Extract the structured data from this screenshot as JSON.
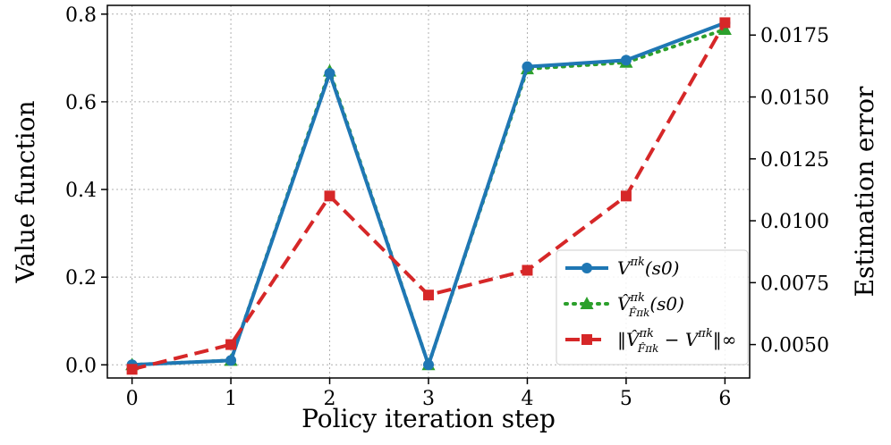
{
  "chart_data": {
    "type": "line",
    "x": [
      0,
      1,
      2,
      3,
      4,
      5,
      6
    ],
    "xlabel": "Policy iteration step",
    "ylabel_left": "Value function",
    "ylabel_right": "Estimation error",
    "ylim_left": [
      -0.03,
      0.82
    ],
    "ylim_right": [
      0.00365,
      0.0187
    ],
    "xlim": [
      -0.25,
      6.25
    ],
    "xticks": [
      "0",
      "1",
      "2",
      "3",
      "4",
      "5",
      "6"
    ],
    "yticks_left": [
      "0.0",
      "0.2",
      "0.4",
      "0.6",
      "0.8"
    ],
    "yticks_right": [
      "0.0050",
      "0.0075",
      "0.0100",
      "0.0125",
      "0.0150",
      "0.0175"
    ],
    "grid": true,
    "legend_position": "bottom-right",
    "series": [
      {
        "name": "V^{πk}(s0)",
        "axis": "left",
        "color": "#1f77b4",
        "marker": "circle",
        "line_style": "solid",
        "values": [
          0.0,
          0.01,
          0.665,
          0.0,
          0.68,
          0.695,
          0.78
        ]
      },
      {
        "name": "V̂^{πk}_{F̂^{πk}}(s0)",
        "axis": "left",
        "color": "#2ca02c",
        "marker": "triangle",
        "line_style": "dotted",
        "values": [
          0.0,
          0.01,
          0.67,
          0.0,
          0.675,
          0.69,
          0.765
        ]
      },
      {
        "name": "‖V̂^{πk}_{F̂^{πk}} − V^{πk}‖∞",
        "axis": "right",
        "color": "#d62728",
        "marker": "square",
        "line_style": "dashed",
        "values": [
          0.004,
          0.005,
          0.011,
          0.007,
          0.008,
          0.011,
          0.018
        ]
      }
    ]
  },
  "legend": {
    "entries": [
      {
        "main": "V",
        "sup": "πk",
        "tail": "(s0)"
      },
      {
        "main": "V̂",
        "sup": "πk",
        "sub": "F̂πk",
        "tail": "(s0)"
      },
      {
        "main": "‖V̂",
        "sup": "πk",
        "sub": "F̂πk",
        "tail": " − V",
        "sup2": "πk",
        "tail2": "‖∞"
      }
    ]
  }
}
